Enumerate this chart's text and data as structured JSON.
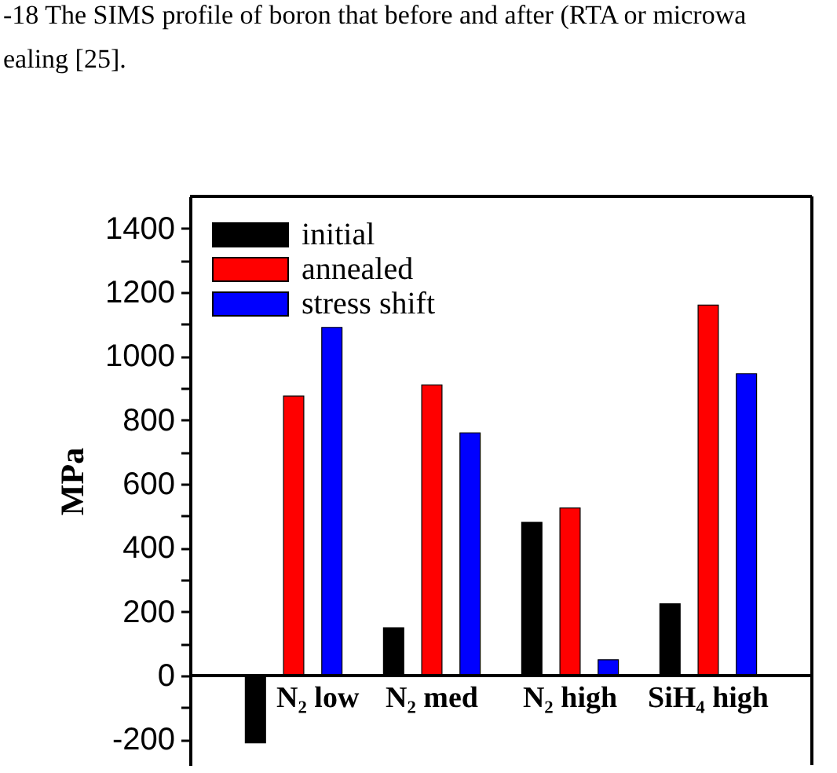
{
  "chart_data": {
    "type": "bar",
    "ylabel": "MPa",
    "categories": [
      "N₂ low",
      "N₂ med",
      "N₂ high",
      "SiH₄ high"
    ],
    "series": [
      {
        "name": "initial",
        "color": "#000000",
        "values": [
          -210,
          150,
          480,
          225
        ]
      },
      {
        "name": "annealed",
        "color": "#ff0000",
        "values": [
          875,
          910,
          525,
          1160
        ]
      },
      {
        "name": "stress shift",
        "color": "#0000ff",
        "values": [
          1090,
          760,
          50,
          945
        ]
      }
    ],
    "ylim": [
      -280,
      1500
    ],
    "yticks": [
      -200,
      {
        "value": -100,
        "label": null
      },
      0,
      {
        "value": 100,
        "label": null
      },
      200,
      {
        "value": 300,
        "label": null
      },
      400,
      {
        "value": 500,
        "label": null
      },
      600,
      {
        "value": 700,
        "label": null
      },
      800,
      {
        "value": 900,
        "label": null
      },
      1000,
      {
        "value": 1100,
        "label": null
      },
      1200,
      {
        "value": 1300,
        "label": null
      },
      1400
    ],
    "legend": "top left",
    "grid": false,
    "annotations": [
      "-18 The SIMS profile of boron that before and after (RTA or microwa",
      "ealing [25]."
    ]
  }
}
